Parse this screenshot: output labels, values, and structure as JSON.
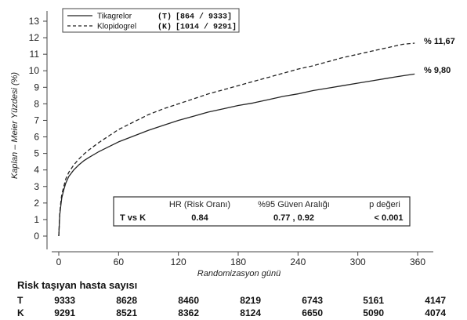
{
  "chart_data": {
    "type": "line",
    "title": "",
    "xlabel": "Randomizasyon günü",
    "ylabel": "Kaplan – Meier Yüzdesi (%)",
    "xlim": [
      0,
      360
    ],
    "ylim": [
      0,
      13
    ],
    "x_ticks": [
      0,
      60,
      120,
      180,
      240,
      300,
      360
    ],
    "y_ticks": [
      0,
      1,
      2,
      3,
      4,
      5,
      6,
      7,
      8,
      9,
      10,
      11,
      12,
      13
    ],
    "grid": false,
    "legend_position": "top-left",
    "series": [
      {
        "name": "Tikagrelor",
        "style": "solid",
        "color": "#222222",
        "legend_code": "(T)",
        "legend_stat": "[864 / 9333]",
        "end_label": "% 9,80",
        "x": [
          0,
          1,
          2,
          3,
          5,
          7,
          10,
          15,
          20,
          25,
          30,
          40,
          50,
          60,
          75,
          90,
          105,
          120,
          135,
          150,
          165,
          180,
          195,
          210,
          225,
          240,
          255,
          270,
          285,
          300,
          315,
          330,
          345,
          357
        ],
        "y": [
          0,
          1.3,
          1.8,
          2.3,
          2.8,
          3.2,
          3.6,
          4.0,
          4.3,
          4.55,
          4.75,
          5.1,
          5.4,
          5.7,
          6.05,
          6.4,
          6.7,
          7.0,
          7.25,
          7.5,
          7.7,
          7.9,
          8.05,
          8.25,
          8.45,
          8.6,
          8.8,
          8.95,
          9.1,
          9.25,
          9.4,
          9.55,
          9.7,
          9.8
        ]
      },
      {
        "name": "Klopidogrel",
        "style": "dashed",
        "color": "#222222",
        "legend_code": "(K)",
        "legend_stat": "[1014 / 9291]",
        "end_label": "% 11,67",
        "x": [
          0,
          1,
          2,
          3,
          5,
          7,
          10,
          15,
          20,
          25,
          30,
          40,
          50,
          60,
          75,
          90,
          105,
          120,
          135,
          150,
          165,
          180,
          195,
          210,
          225,
          240,
          255,
          270,
          285,
          300,
          315,
          330,
          345,
          357
        ],
        "y": [
          0,
          1.4,
          2.0,
          2.5,
          3.0,
          3.45,
          3.85,
          4.3,
          4.65,
          4.95,
          5.2,
          5.65,
          6.05,
          6.45,
          6.9,
          7.35,
          7.7,
          8.0,
          8.3,
          8.6,
          8.85,
          9.1,
          9.35,
          9.6,
          9.85,
          10.1,
          10.3,
          10.55,
          10.8,
          11.0,
          11.2,
          11.4,
          11.6,
          11.67
        ]
      }
    ],
    "stats_table": {
      "headers": [
        "HR (Risk Oranı)",
        "%95 Güven Aralığı",
        "p değeri"
      ],
      "row_label": "T vs K",
      "values": [
        "0.84",
        "0.77 , 0.92",
        "< 0.001"
      ]
    }
  },
  "risk_table": {
    "title": "Risk taşıyan hasta sayısı",
    "days": [
      0,
      60,
      120,
      180,
      240,
      300,
      360
    ],
    "rows": [
      {
        "arm": "T",
        "values": [
          "9333",
          "8628",
          "8460",
          "8219",
          "6743",
          "5161",
          "4147"
        ]
      },
      {
        "arm": "K",
        "values": [
          "9291",
          "8521",
          "8362",
          "8124",
          "6650",
          "5090",
          "4074"
        ]
      }
    ]
  }
}
